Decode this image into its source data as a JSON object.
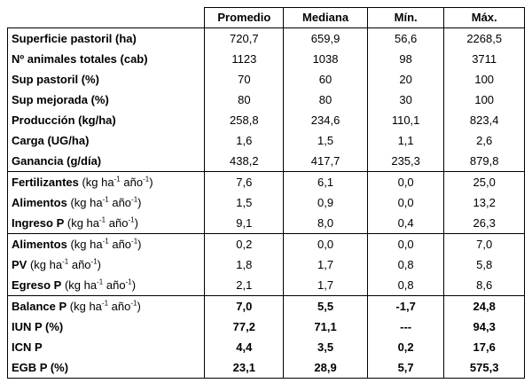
{
  "headers": [
    "Promedio",
    "Mediana",
    "Mín.",
    "Máx."
  ],
  "rows": [
    {
      "label": "Superficie pastoril (ha)",
      "unit": "",
      "values": [
        "720,7",
        "659,9",
        "56,6",
        "2268,5"
      ]
    },
    {
      "label": "Nº animales totales (cab)",
      "unit": "",
      "values": [
        "1123",
        "1038",
        "98",
        "3711"
      ]
    },
    {
      "label": "Sup pastoril (%)",
      "unit": "",
      "values": [
        "70",
        "60",
        "20",
        "100"
      ]
    },
    {
      "label": "Sup mejorada (%)",
      "unit": "",
      "values": [
        "80",
        "80",
        "30",
        "100"
      ]
    },
    {
      "label": "Producción (kg/ha)",
      "unit": "",
      "values": [
        "258,8",
        "234,6",
        "110,1",
        "823,4"
      ]
    },
    {
      "label": "Carga (UG/ha)",
      "unit": "",
      "values": [
        "1,6",
        "1,5",
        "1,1",
        "2,6"
      ]
    },
    {
      "label": "Ganancia (g/día)",
      "unit": "",
      "values": [
        "438,2",
        "417,7",
        "235,3",
        "879,8"
      ]
    },
    {
      "label": "Fertilizantes",
      "unit": "kg ha-1 año-1",
      "values": [
        "7,6",
        "6,1",
        "0,0",
        "25,0"
      ]
    },
    {
      "label": "Alimentos",
      "unit": "kg ha-1 año-1",
      "values": [
        "1,5",
        "0,9",
        "0,0",
        "13,2"
      ]
    },
    {
      "label": "Ingreso P",
      "unit": "kg ha-1 año-1",
      "values": [
        "9,1",
        "8,0",
        "0,4",
        "26,3"
      ]
    },
    {
      "label": "Alimentos",
      "unit": "kg ha-1 año-1",
      "values": [
        "0,2",
        "0,0",
        "0,0",
        "7,0"
      ]
    },
    {
      "label": "PV",
      "unit": "kg ha-1 año-1",
      "values": [
        "1,8",
        "1,7",
        "0,8",
        "5,8"
      ]
    },
    {
      "label": "Egreso P",
      "unit": "kg ha-1 año-1",
      "values": [
        "2,1",
        "1,7",
        "0,8",
        "8,6"
      ]
    },
    {
      "label": "Balance P",
      "unit": "kg ha-1 año-1",
      "values": [
        "7,0",
        "5,5",
        "-1,7",
        "24,8"
      ]
    },
    {
      "label": "IUN P (%)",
      "unit": "",
      "values": [
        "77,2",
        "71,1",
        "---",
        "94,3"
      ]
    },
    {
      "label": "ICN P",
      "unit": "",
      "values": [
        "4,4",
        "3,5",
        "0,2",
        "17,6"
      ]
    },
    {
      "label": "EGB P (%)",
      "unit": "",
      "values": [
        "23,1",
        "28,9",
        "5,7",
        "575,3"
      ]
    }
  ]
}
